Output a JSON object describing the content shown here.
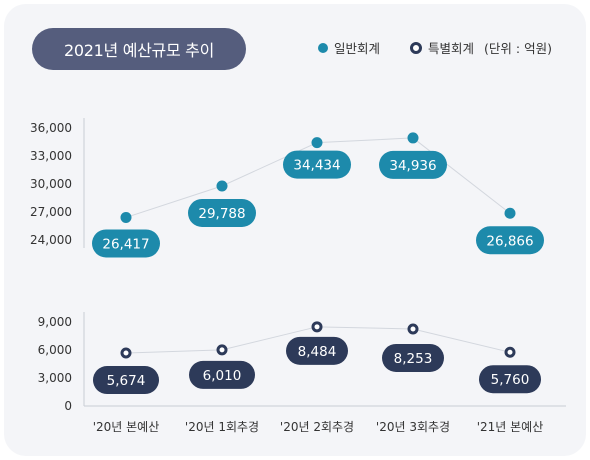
{
  "chart_data": {
    "type": "line",
    "title": "2021년 예산규모 추이",
    "unit": "(단위 : 억원)",
    "categories": [
      "'20년 본예산",
      "'20년 1회추경",
      "'20년 2회추경",
      "'20년 3회추경",
      "'21년 본예산"
    ],
    "series": [
      {
        "name": "일반회계",
        "values": [
          26417,
          29788,
          34434,
          34936,
          26866
        ],
        "labels": [
          "26,417",
          "29,788",
          "34,434",
          "34,936",
          "26,866"
        ],
        "color": "#1d8aab"
      },
      {
        "name": "특별회계",
        "values": [
          5674,
          6010,
          8484,
          8253,
          5760
        ],
        "labels": [
          "5,674",
          "6,010",
          "8,484",
          "8,253",
          "5,760"
        ],
        "color": "#2d3a59"
      }
    ],
    "y_ticks_lower": [
      "0",
      "3,000",
      "6,000",
      "9,000"
    ],
    "y_ticks_upper": [
      "24,000",
      "27,000",
      "30,000",
      "33,000",
      "36,000"
    ],
    "ylim_lower": [
      0,
      9000
    ],
    "ylim_upper": [
      24000,
      36000
    ],
    "axis_break": true,
    "grid": false,
    "legend_position": "top-right"
  },
  "colors": {
    "general": "#1d8aab",
    "special": "#2d3a59",
    "title_bg": "#555d7d",
    "card_bg": "#f4f5f8",
    "line": "#d3d7de"
  }
}
